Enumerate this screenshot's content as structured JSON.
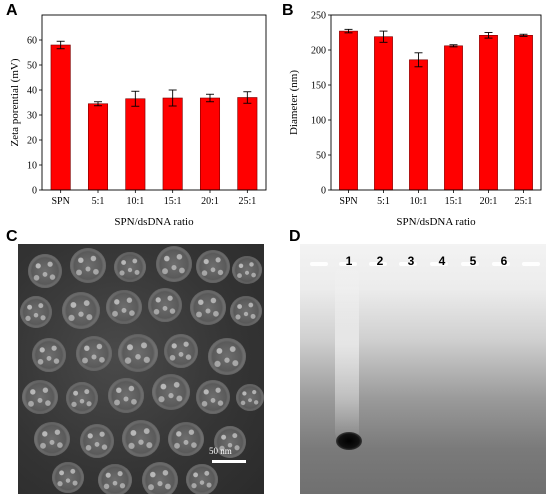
{
  "panels": {
    "a": "A",
    "b": "B",
    "c": "C",
    "d": "D"
  },
  "chart_data": [
    {
      "type": "bar",
      "panel": "A",
      "categories": [
        "SPN",
        "5:1",
        "10:1",
        "15:1",
        "20:1",
        "25:1"
      ],
      "values": [
        58,
        34.5,
        36.5,
        36.8,
        36.8,
        37
      ],
      "errors": [
        1.5,
        0.8,
        3,
        3.2,
        1.5,
        2.3
      ],
      "xlabel": "SPN/dsDNA ratio",
      "ylabel": "Zeta porential (mV)",
      "ylim": [
        0,
        70
      ],
      "yticks": [
        0,
        10,
        20,
        30,
        40,
        50,
        60
      ],
      "bar_color": "#ff0000",
      "grid": false
    },
    {
      "type": "bar",
      "panel": "B",
      "categories": [
        "SPN",
        "5:1",
        "10:1",
        "15:1",
        "20:1",
        "25:1"
      ],
      "values": [
        227,
        219,
        186,
        206,
        221,
        221
      ],
      "errors": [
        2.5,
        8,
        10,
        1.5,
        4,
        1.5
      ],
      "xlabel": "SPN/dsDNA ratio",
      "ylabel": "Diameter (nm)",
      "ylim": [
        0,
        250
      ],
      "yticks": [
        0,
        50,
        100,
        150,
        200,
        250
      ],
      "bar_color": "#ff0000",
      "grid": false
    }
  ],
  "tem": {
    "scale_label": "50 nm"
  },
  "gel": {
    "lanes": [
      "1",
      "2",
      "3",
      "4",
      "5",
      "6"
    ]
  }
}
